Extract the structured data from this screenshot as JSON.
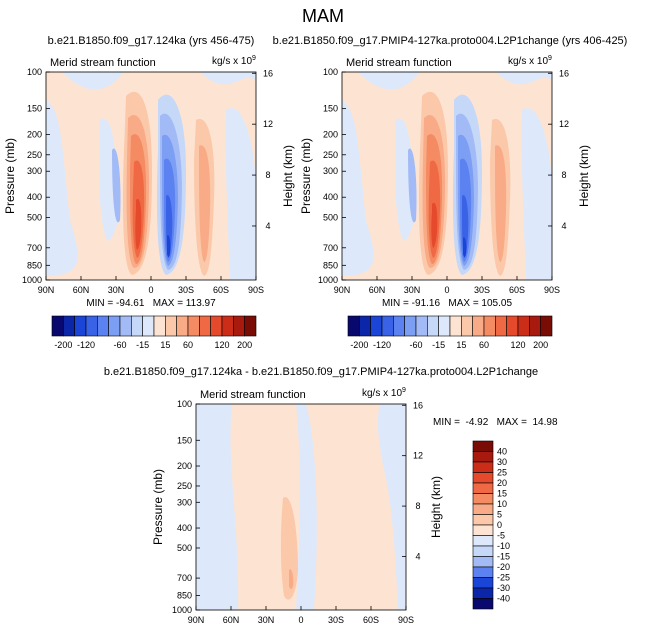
{
  "figure": {
    "title": "MAM"
  },
  "palette": {
    "blue": [
      "#08086e",
      "#0b26a8",
      "#1a45d6",
      "#3a62e6",
      "#5b82f0",
      "#7c9ff4",
      "#a2bbf6",
      "#c6d8f8",
      "#dde8fb"
    ],
    "white": "#ffffff",
    "red": [
      "#fde4d2",
      "#fbc9aa",
      "#f8ab86",
      "#f48b62",
      "#ef6a44",
      "#e44a2b",
      "#cc2d19",
      "#a81a0d",
      "#7a0c06"
    ]
  },
  "chart_data": [
    {
      "type": "heatmap",
      "title": "b.e21.B1850.f09_g17.124ka (yrs 456-475)",
      "subtitle": "Merid stream function",
      "units": "kg/s x 10",
      "units_exp": "9",
      "xlabel": "",
      "ylabel": "Pressure (mb)",
      "ylabel_right": "Height (km)",
      "x_ticks": [
        "90N",
        "60N",
        "30N",
        "0",
        "30S",
        "60S",
        "90S"
      ],
      "y_ticks": [
        "100",
        "150",
        "200",
        "250",
        "300",
        "400",
        "500",
        "700",
        "850",
        "1000"
      ],
      "height_ticks": [
        "16",
        "12",
        "8",
        "4"
      ],
      "stats": "MIN = -94.61   MAX = 113.97",
      "colorbar_labels": [
        "-200",
        "-120",
        "-60",
        "-15",
        "15",
        "60",
        "120",
        "200"
      ],
      "min": -94.61,
      "max": 113.97
    },
    {
      "type": "heatmap",
      "title": "b.e21.B1850.f09_g17.PMIP4-127ka.proto004.L2P1change (yrs 406-425)",
      "subtitle": "Merid stream function",
      "units": "kg/s x 10",
      "units_exp": "9",
      "xlabel": "",
      "ylabel": "Pressure (mb)",
      "ylabel_right": "Height (km)",
      "x_ticks": [
        "90N",
        "60N",
        "30N",
        "0",
        "30S",
        "60S",
        "90S"
      ],
      "y_ticks": [
        "100",
        "150",
        "200",
        "250",
        "300",
        "400",
        "500",
        "700",
        "850",
        "1000"
      ],
      "height_ticks": [
        "16",
        "12",
        "8",
        "4"
      ],
      "stats": "MIN = -91.16   MAX = 105.05",
      "colorbar_labels": [
        "-200",
        "-120",
        "-60",
        "-15",
        "15",
        "60",
        "120",
        "200"
      ],
      "min": -91.16,
      "max": 105.05
    },
    {
      "type": "heatmap",
      "title": "b.e21.B1850.f09_g17.124ka - b.e21.B1850.f09_g17.PMIP4-127ka.proto004.L2P1change",
      "subtitle": "Merid stream function",
      "units": "kg/s x 10",
      "units_exp": "9",
      "xlabel": "",
      "ylabel": "Pressure (mb)",
      "ylabel_right": "Height (km)",
      "x_ticks": [
        "90N",
        "60N",
        "30N",
        "0",
        "30S",
        "60S",
        "90S"
      ],
      "y_ticks": [
        "100",
        "150",
        "200",
        "250",
        "300",
        "400",
        "500",
        "700",
        "850",
        "1000"
      ],
      "height_ticks": [
        "16",
        "12",
        "8",
        "4"
      ],
      "stats": "MIN =  -4.92   MAX =  14.98",
      "colorbar_labels": [
        "40",
        "30",
        "25",
        "20",
        "15",
        "10",
        "5",
        "0",
        "-5",
        "-10",
        "-15",
        "-20",
        "-25",
        "-30",
        "-40"
      ],
      "min": -4.92,
      "max": 14.98
    }
  ]
}
